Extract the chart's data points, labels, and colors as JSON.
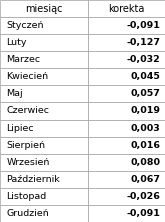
{
  "headers": [
    "miesiąc",
    "korekta"
  ],
  "months": [
    "Styczeń",
    "Luty",
    "Marzec",
    "Kwiecień",
    "Maj",
    "Czerwiec",
    "Lipiec",
    "Sierpień",
    "Wrzesień",
    "Październik",
    "Listopad",
    "Grudzień"
  ],
  "values": [
    "-0,091",
    "-0,127",
    "-0,032",
    "0,045",
    "0,057",
    "0,019",
    "0,003",
    "0,016",
    "0,080",
    "0,067",
    "-0,026",
    "-0,091"
  ],
  "header_bg": "#ffffff",
  "row_bg": "#ffffff",
  "border_color": "#a0a0a0",
  "text_color": "#000000",
  "value_color": "#000000",
  "header_fontsize": 7.0,
  "cell_fontsize": 6.8,
  "col_split": 0.535
}
